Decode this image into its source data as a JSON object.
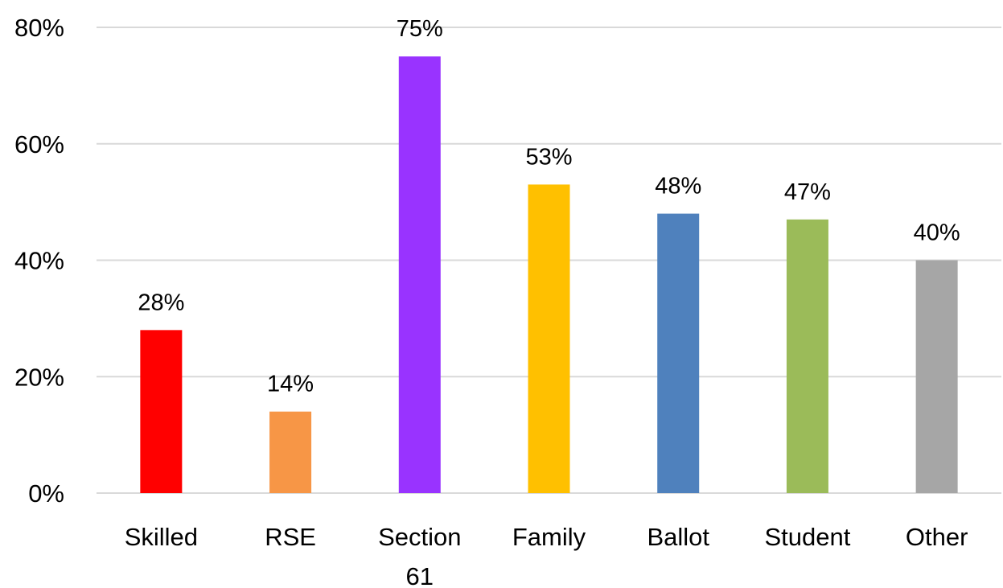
{
  "chart_data": {
    "type": "bar",
    "title": "",
    "xlabel": "",
    "ylabel": "",
    "categories": [
      [
        "Skilled"
      ],
      [
        "RSE"
      ],
      [
        "Section",
        "61"
      ],
      [
        "Family"
      ],
      [
        "Ballot"
      ],
      [
        "Student"
      ],
      [
        "Other"
      ]
    ],
    "values": [
      28,
      14,
      75,
      53,
      48,
      47,
      40
    ],
    "data_labels": [
      "28%",
      "14%",
      "75%",
      "53%",
      "48%",
      "47%",
      "40%"
    ],
    "colors": [
      "#ff0000",
      "#f79646",
      "#9933ff",
      "#ffc000",
      "#4f81bd",
      "#9bbb59",
      "#a6a6a6"
    ],
    "ylim": [
      0,
      80
    ],
    "yticks": [
      0,
      20,
      40,
      60,
      80
    ],
    "ytick_labels": [
      "0%",
      "20%",
      "40%",
      "60%",
      "80%"
    ],
    "grid": true,
    "legend": "none"
  }
}
